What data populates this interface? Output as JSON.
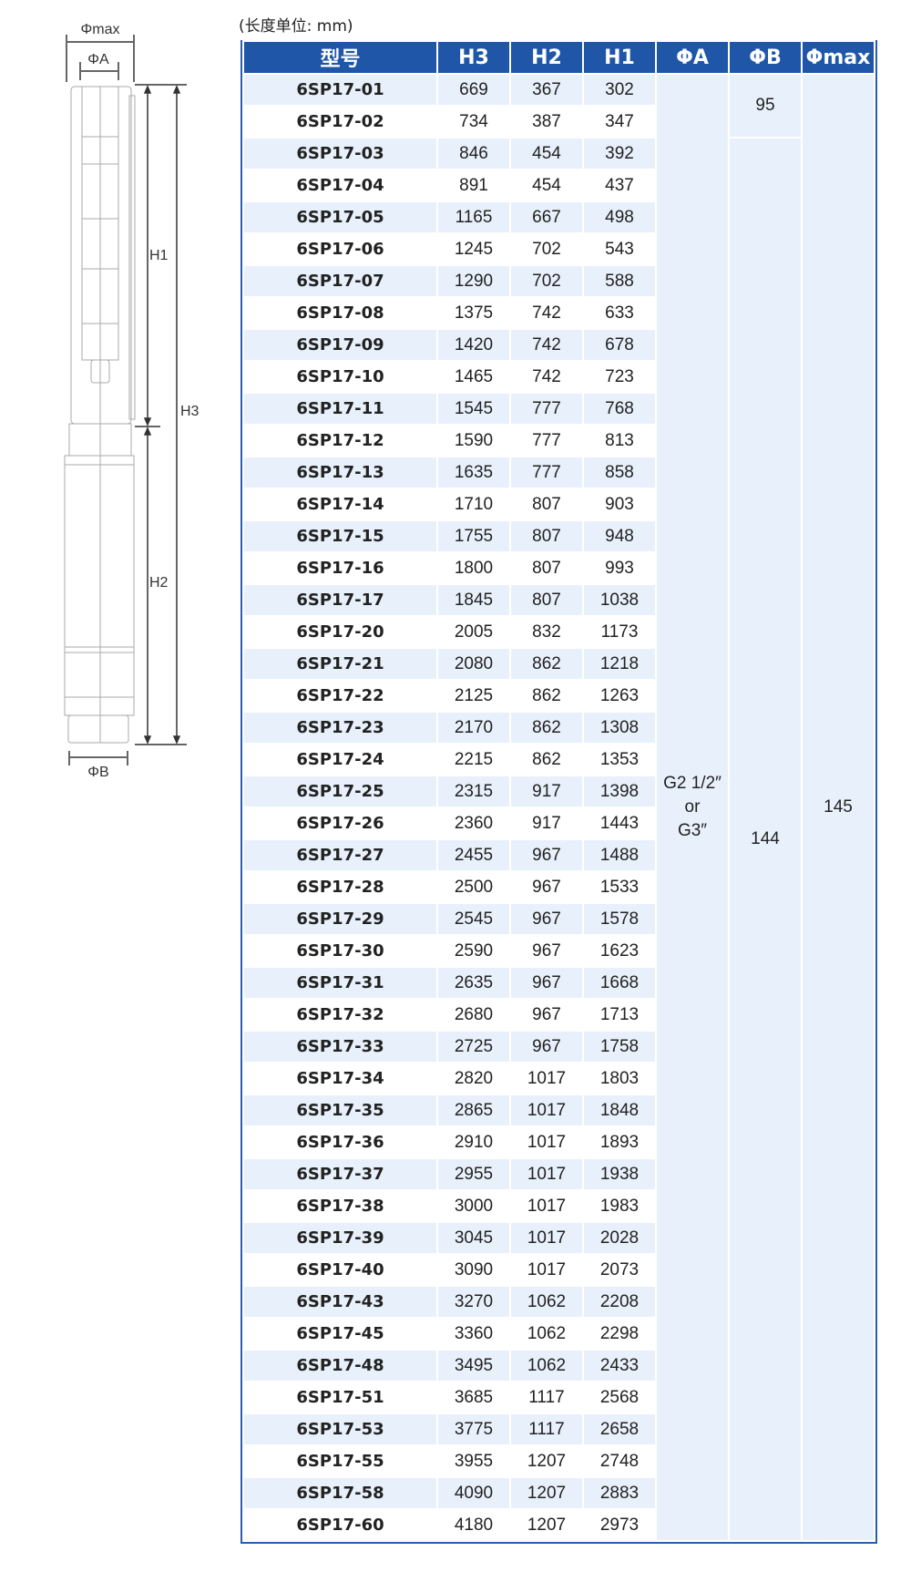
{
  "unit_note": "(长度单位: mm)",
  "diagram": {
    "labels": {
      "phi_max": "Φmax",
      "phi_a": "ΦA",
      "phi_b": "ΦB",
      "h1": "H1",
      "h2": "H2",
      "h3": "H3"
    }
  },
  "table": {
    "headers": [
      "型号",
      "H3",
      "H2",
      "H1",
      "ΦA",
      "ΦB",
      "Φmax"
    ],
    "header_color": "#1f56a8",
    "stripe_color": "#e8f1fb",
    "rows": [
      [
        "6SP17-01",
        "669",
        "367",
        "302"
      ],
      [
        "6SP17-02",
        "734",
        "387",
        "347"
      ],
      [
        "6SP17-03",
        "846",
        "454",
        "392"
      ],
      [
        "6SP17-04",
        "891",
        "454",
        "437"
      ],
      [
        "6SP17-05",
        "1165",
        "667",
        "498"
      ],
      [
        "6SP17-06",
        "1245",
        "702",
        "543"
      ],
      [
        "6SP17-07",
        "1290",
        "702",
        "588"
      ],
      [
        "6SP17-08",
        "1375",
        "742",
        "633"
      ],
      [
        "6SP17-09",
        "1420",
        "742",
        "678"
      ],
      [
        "6SP17-10",
        "1465",
        "742",
        "723"
      ],
      [
        "6SP17-11",
        "1545",
        "777",
        "768"
      ],
      [
        "6SP17-12",
        "1590",
        "777",
        "813"
      ],
      [
        "6SP17-13",
        "1635",
        "777",
        "858"
      ],
      [
        "6SP17-14",
        "1710",
        "807",
        "903"
      ],
      [
        "6SP17-15",
        "1755",
        "807",
        "948"
      ],
      [
        "6SP17-16",
        "1800",
        "807",
        "993"
      ],
      [
        "6SP17-17",
        "1845",
        "807",
        "1038"
      ],
      [
        "6SP17-20",
        "2005",
        "832",
        "1173"
      ],
      [
        "6SP17-21",
        "2080",
        "862",
        "1218"
      ],
      [
        "6SP17-22",
        "2125",
        "862",
        "1263"
      ],
      [
        "6SP17-23",
        "2170",
        "862",
        "1308"
      ],
      [
        "6SP17-24",
        "2215",
        "862",
        "1353"
      ],
      [
        "6SP17-25",
        "2315",
        "917",
        "1398"
      ],
      [
        "6SP17-26",
        "2360",
        "917",
        "1443"
      ],
      [
        "6SP17-27",
        "2455",
        "967",
        "1488"
      ],
      [
        "6SP17-28",
        "2500",
        "967",
        "1533"
      ],
      [
        "6SP17-29",
        "2545",
        "967",
        "1578"
      ],
      [
        "6SP17-30",
        "2590",
        "967",
        "1623"
      ],
      [
        "6SP17-31",
        "2635",
        "967",
        "1668"
      ],
      [
        "6SP17-32",
        "2680",
        "967",
        "1713"
      ],
      [
        "6SP17-33",
        "2725",
        "967",
        "1758"
      ],
      [
        "6SP17-34",
        "2820",
        "1017",
        "1803"
      ],
      [
        "6SP17-35",
        "2865",
        "1017",
        "1848"
      ],
      [
        "6SP17-36",
        "2910",
        "1017",
        "1893"
      ],
      [
        "6SP17-37",
        "2955",
        "1017",
        "1938"
      ],
      [
        "6SP17-38",
        "3000",
        "1017",
        "1983"
      ],
      [
        "6SP17-39",
        "3045",
        "1017",
        "2028"
      ],
      [
        "6SP17-40",
        "3090",
        "1017",
        "2073"
      ],
      [
        "6SP17-43",
        "3270",
        "1062",
        "2208"
      ],
      [
        "6SP17-45",
        "3360",
        "1062",
        "2298"
      ],
      [
        "6SP17-48",
        "3495",
        "1062",
        "2433"
      ],
      [
        "6SP17-51",
        "3685",
        "1117",
        "2568"
      ],
      [
        "6SP17-53",
        "3775",
        "1117",
        "2658"
      ],
      [
        "6SP17-55",
        "3955",
        "1207",
        "2748"
      ],
      [
        "6SP17-58",
        "4090",
        "1207",
        "2883"
      ],
      [
        "6SP17-60",
        "4180",
        "1207",
        "2973"
      ]
    ],
    "phi_a": {
      "line1": "G2 1/2″",
      "line2": "or",
      "line3": "G3″"
    },
    "phi_b": [
      {
        "value": "95",
        "rows": 2
      },
      {
        "value": "144",
        "rows": 44
      }
    ],
    "phi_max": "145"
  }
}
